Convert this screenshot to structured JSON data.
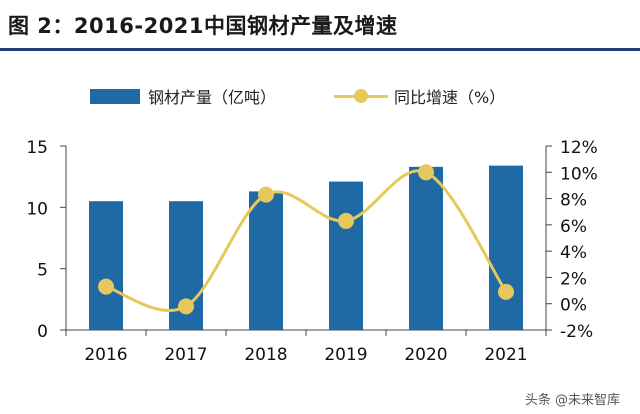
{
  "title": "图 2：2016-2021中国钢材产量及增速",
  "legend": {
    "bar_label": "钢材产量（亿吨）",
    "line_label": "同比增速（%）"
  },
  "watermark": "头条 @未来智库",
  "colors": {
    "bar": "#1f6aa5",
    "line": "#e6c85c",
    "title_rule": "#1f3f73"
  },
  "chart_data": {
    "type": "bar+line",
    "title": "2016-2021中国钢材产量及增速",
    "categories": [
      "2016",
      "2017",
      "2018",
      "2019",
      "2020",
      "2021"
    ],
    "series": [
      {
        "name": "钢材产量（亿吨）",
        "type": "bar",
        "axis": "left",
        "values": [
          10.5,
          10.5,
          11.3,
          12.1,
          13.3,
          13.4
        ]
      },
      {
        "name": "同比增速（%）",
        "type": "line",
        "axis": "right",
        "smooth": true,
        "values": [
          1.3,
          -0.2,
          8.3,
          6.3,
          10.0,
          0.9
        ]
      }
    ],
    "y_left": {
      "min": 0,
      "max": 15,
      "step": 5,
      "tick_labels": [
        "0",
        "5",
        "10",
        "15"
      ]
    },
    "y_right": {
      "min": -2,
      "max": 12,
      "step": 2,
      "tick_labels": [
        "-2%",
        "0%",
        "2%",
        "4%",
        "6%",
        "8%",
        "10%",
        "12%"
      ]
    },
    "grid": false,
    "legend_position": "top"
  }
}
